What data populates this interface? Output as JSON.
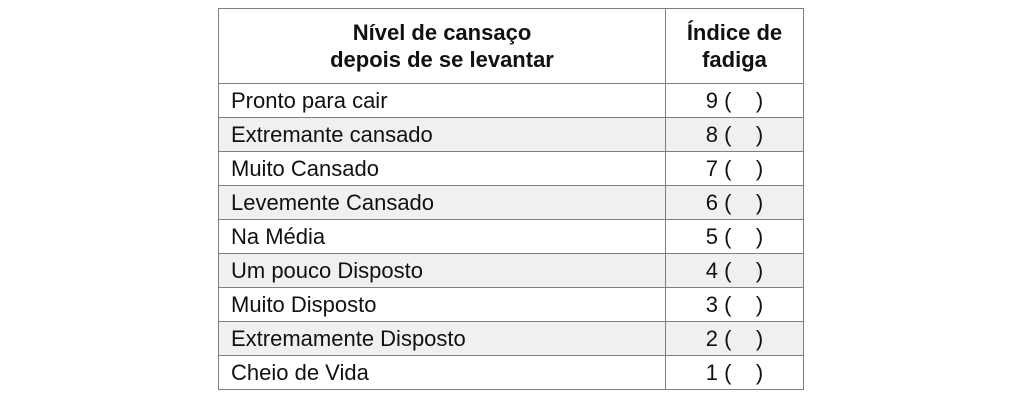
{
  "header": {
    "col1_line1": "Nível de cansaço",
    "col1_line2": "depois de se levantar",
    "col2_line1": "Índice de",
    "col2_line2": "fadiga"
  },
  "rows": [
    {
      "level": "Pronto para cair",
      "index": "9",
      "mark": "(    )"
    },
    {
      "level": "Extremante cansado",
      "index": "8",
      "mark": "(    )"
    },
    {
      "level": "Muito Cansado",
      "index": "7",
      "mark": "(    )"
    },
    {
      "level": "Levemente Cansado",
      "index": "6",
      "mark": "(    )"
    },
    {
      "level": "Na Média",
      "index": "5",
      "mark": "(    )"
    },
    {
      "level": "Um pouco Disposto",
      "index": "4",
      "mark": "(    )"
    },
    {
      "level": "Muito Disposto",
      "index": "3",
      "mark": "(    )"
    },
    {
      "level": "Extremamente Disposto",
      "index": "2",
      "mark": "(    )"
    },
    {
      "level": "Cheio de Vida",
      "index": "1",
      "mark": "(    )"
    }
  ],
  "colors": {
    "border": "#7f7f7f",
    "shaded_row": "#f0f0f0",
    "text": "#111111"
  }
}
